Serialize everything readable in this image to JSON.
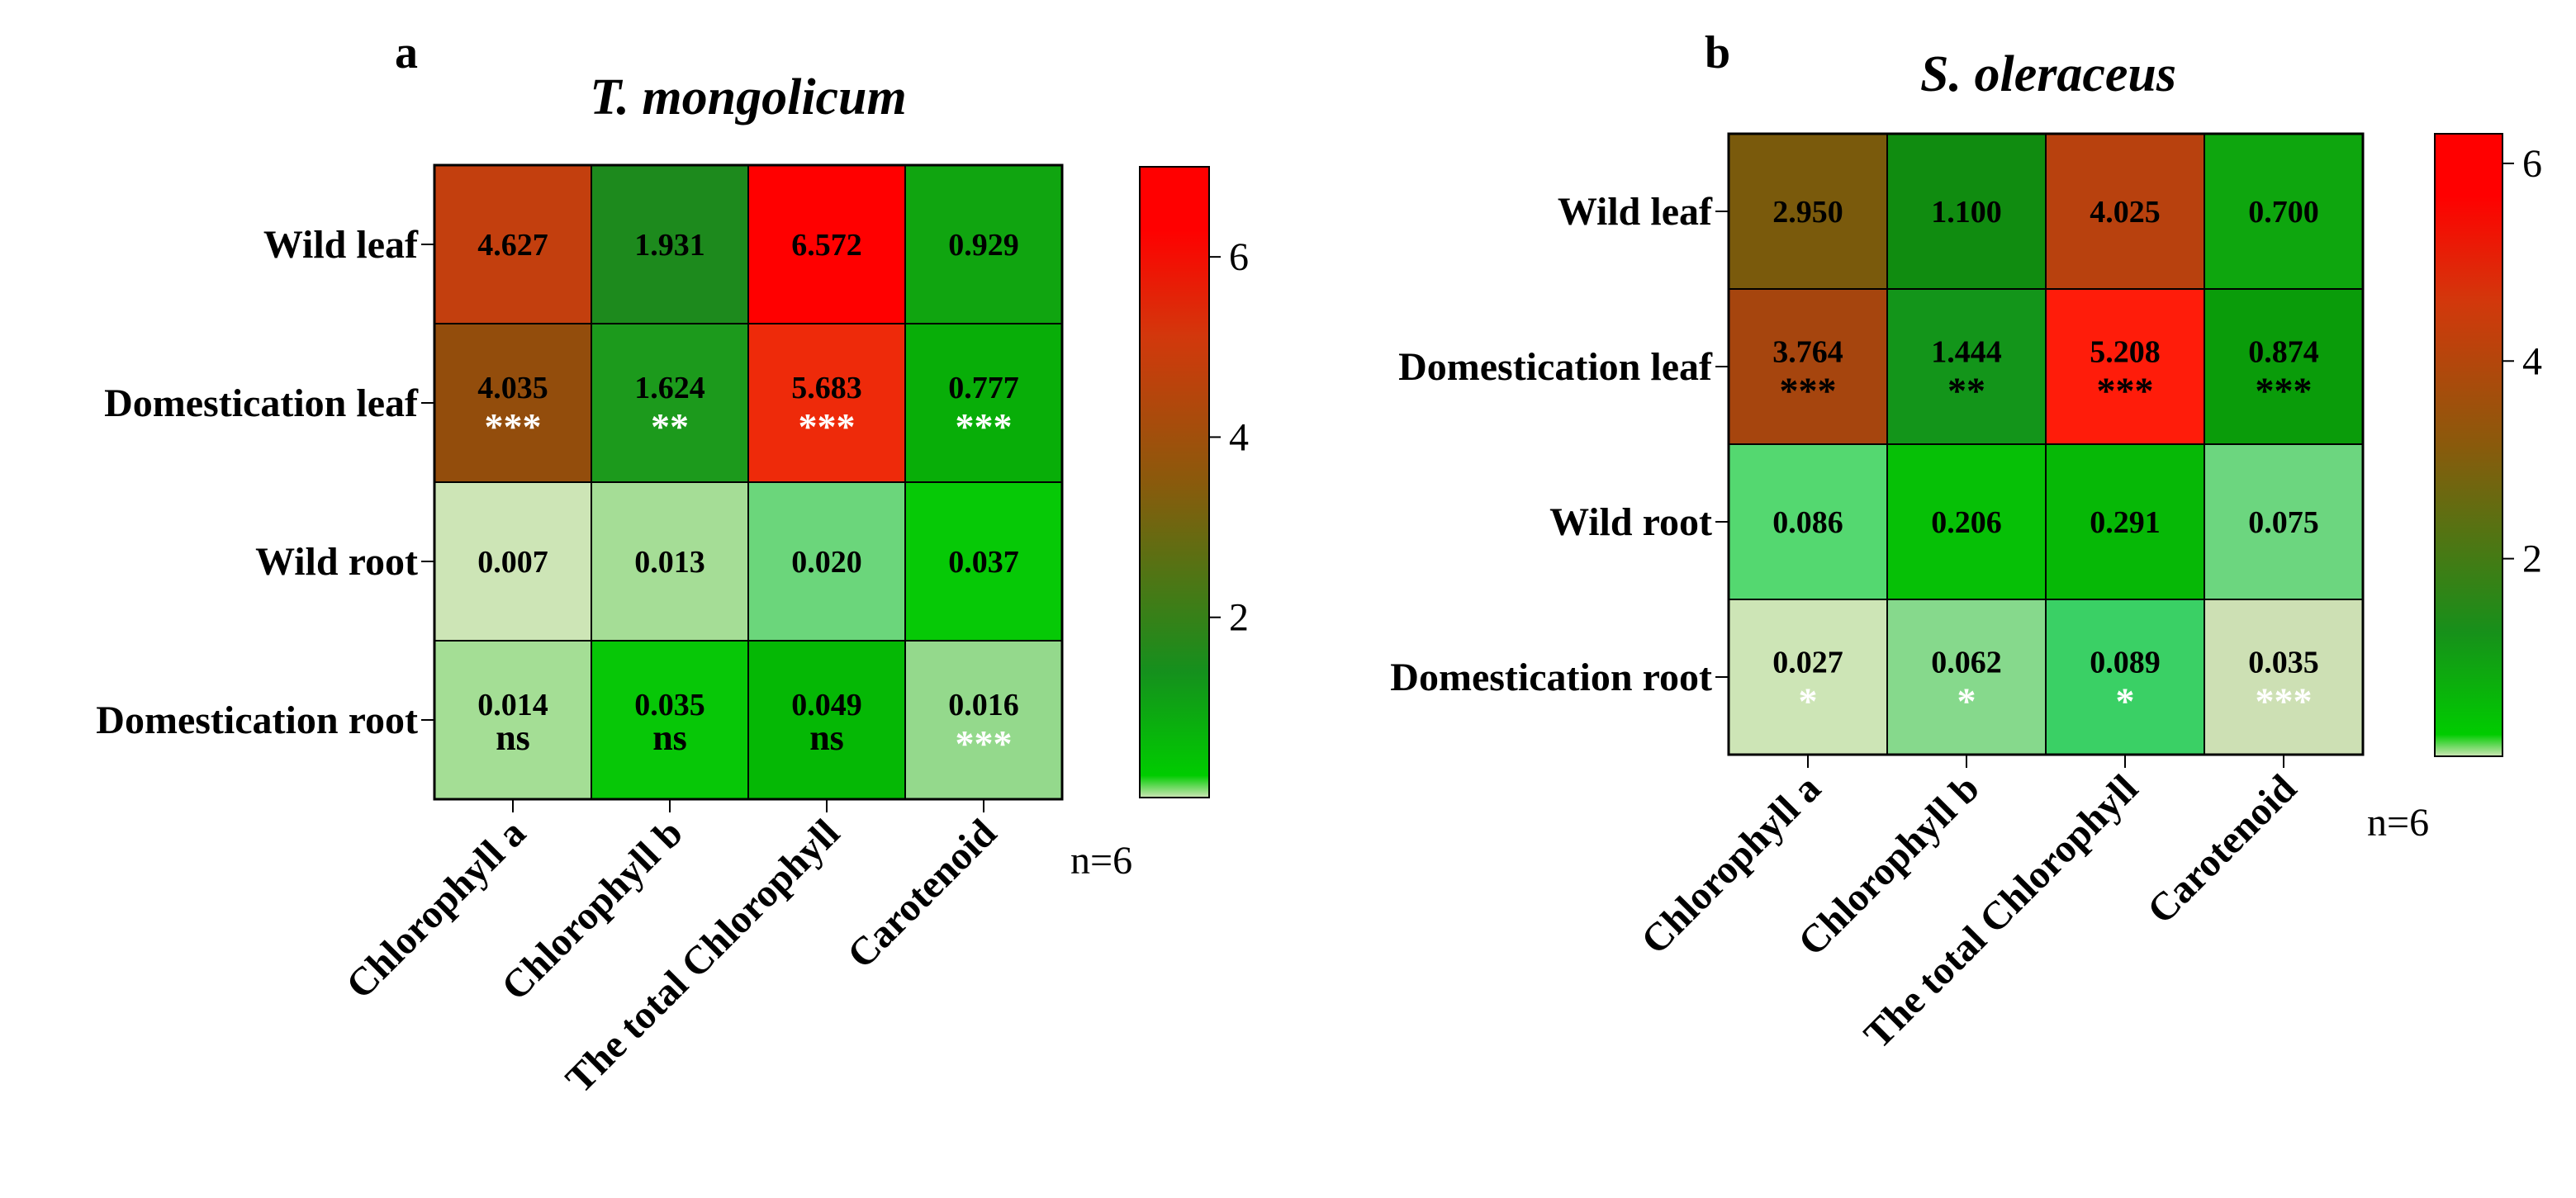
{
  "chart_data": [
    {
      "type": "heatmap",
      "panel": "a",
      "title": "T. mongolicum",
      "rows": [
        "Wild leaf",
        "Domestication leaf",
        "Wild root",
        "Domestication root"
      ],
      "columns": [
        "Chlorophyll a",
        "Chlorophyll b",
        "The total Chlorophyll",
        "Carotenoid"
      ],
      "values": [
        [
          4.627,
          1.931,
          6.572,
          0.929
        ],
        [
          4.035,
          1.624,
          5.683,
          0.777
        ],
        [
          0.007,
          0.013,
          0.02,
          0.037
        ],
        [
          0.014,
          0.035,
          0.049,
          0.016
        ]
      ],
      "labels": [
        [
          "4.627",
          "1.931",
          "6.572",
          "0.929"
        ],
        [
          "4.035",
          "1.624",
          "5.683",
          "0.777"
        ],
        [
          "0.007",
          "0.013",
          "0.020",
          "0.037"
        ],
        [
          "0.014",
          "0.035",
          "0.049",
          "0.016"
        ]
      ],
      "significance": [
        [
          "",
          "",
          "",
          ""
        ],
        [
          "***",
          "**",
          "***",
          "***"
        ],
        [
          "",
          "",
          "",
          ""
        ],
        [
          "ns",
          "ns",
          "ns",
          "***"
        ]
      ],
      "significance_colors": [
        [
          "",
          "",
          "",
          ""
        ],
        [
          "#ffffff",
          "#ffffff",
          "#ffffff",
          "#ffffff"
        ],
        [
          "",
          "",
          "",
          ""
        ],
        [
          "#000000",
          "#000000",
          "#000000",
          "#ffffff"
        ]
      ],
      "cell_colors": [
        [
          "#c33f0e",
          "#1d8a1d",
          "#ff0000",
          "#10a510"
        ],
        [
          "#934d0c",
          "#1c9a1c",
          "#ee2a0a",
          "#08ae08"
        ],
        [
          "#cde5b6",
          "#a5dd96",
          "#6bd67b",
          "#06c906"
        ],
        [
          "#a4de95",
          "#07c707",
          "#05b805",
          "#94d98c"
        ]
      ],
      "colorbar": {
        "ticks": [
          2,
          4,
          6
        ],
        "range": [
          0,
          7
        ],
        "stops": [
          "#cde5b6",
          "#00cc00",
          "#15901d",
          "#8a5a0c",
          "#d2380c",
          "#ff0000"
        ]
      },
      "n_label": "n=6"
    },
    {
      "type": "heatmap",
      "panel": "b",
      "title": "S. oleraceus",
      "rows": [
        "Wild leaf",
        "Domestication leaf",
        "Wild root",
        "Domestication root"
      ],
      "columns": [
        "Chlorophyll a",
        "Chlorophyll b",
        "The total Chlorophyll",
        "Carotenoid"
      ],
      "values": [
        [
          2.95,
          1.1,
          4.025,
          0.7
        ],
        [
          3.764,
          1.444,
          5.208,
          0.874
        ],
        [
          0.086,
          0.206,
          0.291,
          0.075
        ],
        [
          0.027,
          0.062,
          0.089,
          0.035
        ]
      ],
      "labels": [
        [
          "2.950",
          "1.100",
          "4.025",
          "0.700"
        ],
        [
          "3.764",
          "1.444",
          "5.208",
          "0.874"
        ],
        [
          "0.086",
          "0.206",
          "0.291",
          "0.075"
        ],
        [
          "0.027",
          "0.062",
          "0.089",
          "0.035"
        ]
      ],
      "significance": [
        [
          "",
          "",
          "",
          ""
        ],
        [
          "***",
          "**",
          "***",
          "***"
        ],
        [
          "",
          "",
          "",
          ""
        ],
        [
          "*",
          "*",
          "*",
          "***"
        ]
      ],
      "significance_colors": [
        [
          "",
          "",
          "",
          ""
        ],
        [
          "#000000",
          "#000000",
          "#000000",
          "#000000"
        ],
        [
          "",
          "",
          "",
          ""
        ],
        [
          "#ffffff",
          "#ffffff",
          "#ffffff",
          "#ffffff"
        ]
      ],
      "cell_colors": [
        [
          "#7a5a0c",
          "#108c10",
          "#b8410e",
          "#0ea60e"
        ],
        [
          "#a6450e",
          "#13951a",
          "#ff1c0a",
          "#0a9c0a"
        ],
        [
          "#54d870",
          "#06c006",
          "#06b806",
          "#6cd67f"
        ],
        [
          "#cde5b6",
          "#86d98c",
          "#3ad065",
          "#cde0b4"
        ]
      ],
      "colorbar": {
        "ticks": [
          2,
          4,
          6
        ],
        "range": [
          0,
          6.3
        ],
        "stops": [
          "#cde5b6",
          "#00cc00",
          "#17901a",
          "#8a5a0c",
          "#d2380c",
          "#ff0000"
        ]
      },
      "n_label": "n=6"
    }
  ]
}
